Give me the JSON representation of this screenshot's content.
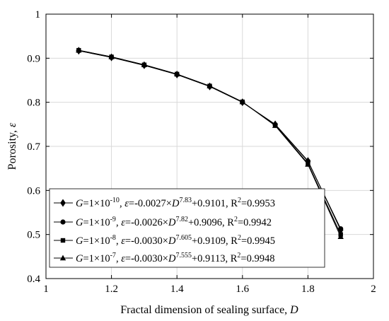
{
  "chart_data": {
    "type": "line",
    "xlabel": "Fractal dimension of sealing surface, ",
    "xlabel_var": "D",
    "ylabel": "Porosity, ",
    "ylabel_var": "ε",
    "xlim": [
      1,
      2
    ],
    "ylim": [
      0.4,
      1
    ],
    "grid": true,
    "legend_position": "bottom-left",
    "x_tick_labels": [
      "1",
      "1.2",
      "1.4",
      "1.6",
      "1.8",
      "2"
    ],
    "y_tick_labels": [
      "0.4",
      "0.5",
      "0.6",
      "0.7",
      "0.8",
      "0.9",
      "1"
    ],
    "x": [
      1.1,
      1.2,
      1.3,
      1.4,
      1.5,
      1.6,
      1.7,
      1.8,
      1.9
    ],
    "series": [
      {
        "marker": "diamond",
        "g_mantissa": "1×10",
        "g_exp": "-10",
        "coef": "-0.0027",
        "d_exp": "7.83",
        "intercept": "+0.9101",
        "r2": "0.9953",
        "values": [
          0.917,
          0.902,
          0.884,
          0.863,
          0.836,
          0.8,
          0.75,
          0.667,
          0.51
        ]
      },
      {
        "marker": "circle",
        "g_mantissa": "1×10",
        "g_exp": "-9",
        "coef": "-0.0026",
        "d_exp": "7.82",
        "intercept": "+0.9096",
        "r2": "0.9942",
        "values": [
          0.917,
          0.902,
          0.884,
          0.863,
          0.836,
          0.8,
          0.749,
          0.666,
          0.513
        ]
      },
      {
        "marker": "square",
        "g_mantissa": "1×10",
        "g_exp": "-8",
        "coef": "-0.0030",
        "d_exp": "7.605",
        "intercept": "+0.9109",
        "r2": "0.9945",
        "values": [
          0.918,
          0.903,
          0.885,
          0.864,
          0.837,
          0.801,
          0.748,
          0.661,
          0.5
        ]
      },
      {
        "marker": "triangle",
        "g_mantissa": "1×10",
        "g_exp": "-7",
        "coef": "-0.0030",
        "d_exp": "7.555",
        "intercept": "+0.9113",
        "r2": "0.9948",
        "values": [
          0.918,
          0.903,
          0.885,
          0.864,
          0.837,
          0.801,
          0.747,
          0.659,
          0.495
        ]
      }
    ]
  }
}
